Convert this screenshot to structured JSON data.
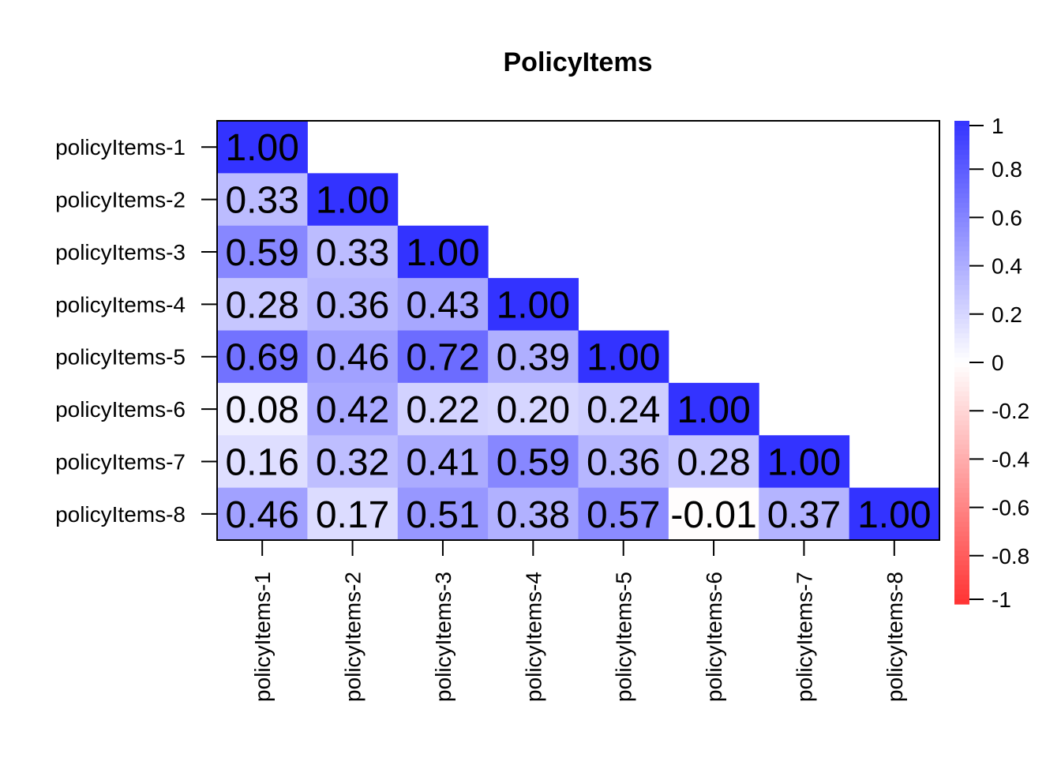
{
  "chart_data": {
    "type": "heatmap",
    "title": "PolicyItems",
    "variables": [
      "policyItems-1",
      "policyItems-2",
      "policyItems-3",
      "policyItems-4",
      "policyItems-5",
      "policyItems-6",
      "policyItems-7",
      "policyItems-8"
    ],
    "matrix": [
      [
        1.0,
        null,
        null,
        null,
        null,
        null,
        null,
        null
      ],
      [
        0.33,
        1.0,
        null,
        null,
        null,
        null,
        null,
        null
      ],
      [
        0.59,
        0.33,
        1.0,
        null,
        null,
        null,
        null,
        null
      ],
      [
        0.28,
        0.36,
        0.43,
        1.0,
        null,
        null,
        null,
        null
      ],
      [
        0.69,
        0.46,
        0.72,
        0.39,
        1.0,
        null,
        null,
        null
      ],
      [
        0.08,
        0.42,
        0.22,
        0.2,
        0.24,
        1.0,
        null,
        null
      ],
      [
        0.16,
        0.32,
        0.41,
        0.59,
        0.36,
        0.28,
        1.0,
        null
      ],
      [
        0.46,
        0.17,
        0.51,
        0.38,
        0.57,
        -0.01,
        0.37,
        1.0
      ]
    ],
    "cell_labels": [
      [
        "1.00"
      ],
      [
        "0.33",
        "1.00"
      ],
      [
        "0.59",
        "0.33",
        "1.00"
      ],
      [
        "0.28",
        "0.36",
        "0.43",
        "1.00"
      ],
      [
        "0.69",
        "0.46",
        "0.72",
        "0.39",
        "1.00"
      ],
      [
        "0.08",
        "0.42",
        "0.22",
        "0.20",
        "0.24",
        "1.00"
      ],
      [
        "0.16",
        "0.32",
        "0.41",
        "0.59",
        "0.36",
        "0.28",
        "1.00"
      ],
      [
        "0.46",
        "0.17",
        "0.51",
        "0.38",
        "0.57",
        "-0.01",
        "0.37",
        "1.00"
      ]
    ],
    "color_scale": {
      "range": [
        -1,
        1
      ],
      "low_color": "#ff3333",
      "mid_color": "#ffffff",
      "high_color": "#3333ff",
      "ticks": [
        "1",
        "0.8",
        "0.6",
        "0.4",
        "0.2",
        "0",
        "-0.2",
        "-0.4",
        "-0.6",
        "-0.8",
        "-1"
      ],
      "tick_values": [
        1,
        0.8,
        0.6,
        0.4,
        0.2,
        0,
        -0.2,
        -0.4,
        -0.6,
        -0.8,
        -1
      ]
    },
    "layout": "lower-triangle",
    "legend_position": "right"
  }
}
